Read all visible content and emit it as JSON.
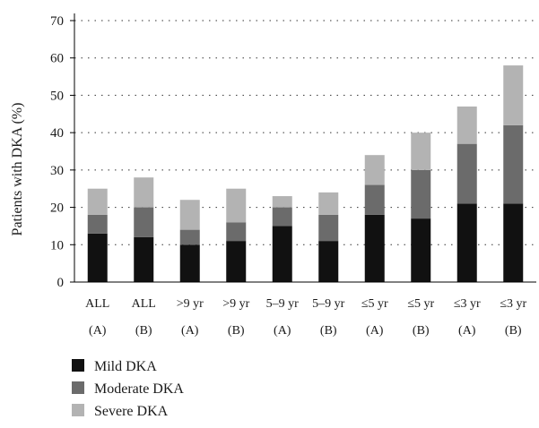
{
  "chart_data": {
    "type": "bar",
    "stacked": true,
    "ylabel": "Patients with DKA (%)",
    "xlabel": "",
    "ylim": [
      0,
      70
    ],
    "yticks": [
      0,
      10,
      20,
      30,
      40,
      50,
      60,
      70
    ],
    "grid": "horizontal dotted",
    "legend_position": "bottom-left",
    "categories": [
      {
        "line1": "ALL",
        "line2": "(A)"
      },
      {
        "line1": "ALL",
        "line2": "(B)"
      },
      {
        "line1": ">9 yr",
        "line2": "(A)"
      },
      {
        "line1": ">9 yr",
        "line2": "(B)"
      },
      {
        "line1": "5–9 yr",
        "line2": "(A)"
      },
      {
        "line1": "5–9 yr",
        "line2": "(B)"
      },
      {
        "line1": "≤5 yr",
        "line2": "(A)"
      },
      {
        "line1": "≤5 yr",
        "line2": "(B)"
      },
      {
        "line1": "≤3 yr",
        "line2": "(A)"
      },
      {
        "line1": "≤3 yr",
        "line2": "(B)"
      }
    ],
    "series": [
      {
        "name": "Mild DKA",
        "color": "#111111",
        "values": [
          13,
          12,
          10,
          11,
          15,
          11,
          18,
          17,
          21,
          21
        ]
      },
      {
        "name": "Moderate DKA",
        "color": "#6b6b6b",
        "values": [
          5,
          8,
          4,
          5,
          5,
          7,
          8,
          13,
          16,
          21
        ]
      },
      {
        "name": "Severe DKA",
        "color": "#b3b3b3",
        "values": [
          7,
          8,
          8,
          9,
          3,
          6,
          8,
          10,
          10,
          16
        ]
      }
    ]
  }
}
